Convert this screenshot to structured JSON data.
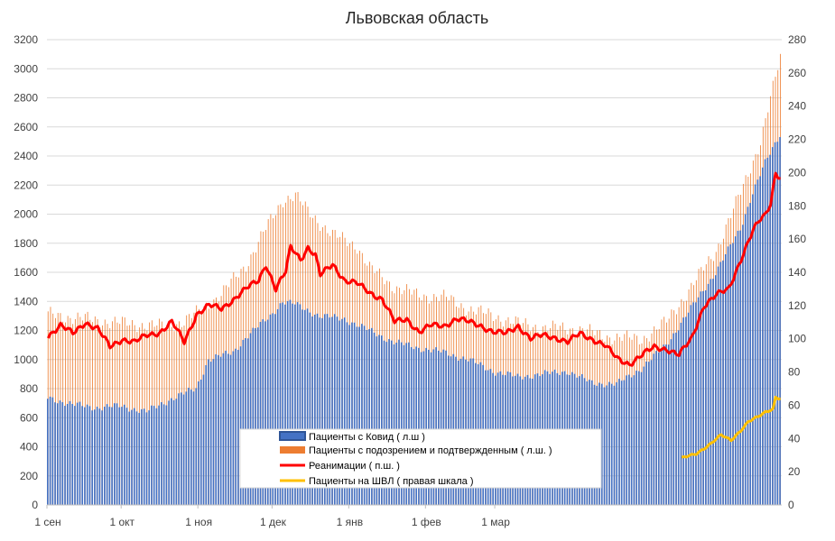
{
  "chart_data": {
    "type": "bar+line",
    "title": "Львовская область",
    "x_tick_labels": [
      "1 сен",
      "1 окт",
      "1 ноя",
      "1 дек",
      "1 янв",
      "1 фев",
      "1 мар"
    ],
    "y_left": {
      "min": 0,
      "max": 3200,
      "step": 200
    },
    "y_right": {
      "min": 0,
      "max": 280,
      "step": 20
    },
    "grid": true,
    "legend_position": "bottom-center",
    "series": [
      {
        "name": "Пациенты с Ковид ( л.ш )",
        "kind": "bar",
        "axis": "left",
        "color": "#4472C4",
        "anchors": [
          [
            0,
            740
          ],
          [
            10,
            690
          ],
          [
            20,
            670
          ],
          [
            30,
            680
          ],
          [
            40,
            640
          ],
          [
            50,
            730
          ],
          [
            60,
            800
          ],
          [
            65,
            1000
          ],
          [
            75,
            1050
          ],
          [
            80,
            1150
          ],
          [
            90,
            1300
          ],
          [
            95,
            1400
          ],
          [
            100,
            1380
          ],
          [
            110,
            1300
          ],
          [
            120,
            1280
          ],
          [
            130,
            1200
          ],
          [
            140,
            1120
          ],
          [
            150,
            1080
          ],
          [
            160,
            1050
          ],
          [
            170,
            1000
          ],
          [
            180,
            920
          ],
          [
            190,
            880
          ],
          [
            200,
            900
          ],
          [
            210,
            920
          ],
          [
            220,
            840
          ],
          [
            230,
            830
          ],
          [
            240,
            940
          ],
          [
            250,
            1100
          ],
          [
            260,
            1350
          ],
          [
            270,
            1600
          ],
          [
            280,
            1900
          ],
          [
            285,
            2150
          ],
          [
            290,
            2350
          ],
          [
            296,
            2550
          ]
        ]
      },
      {
        "name": "Пациенты с подозрением и подтвержденным ( л.ш. )",
        "kind": "bar",
        "axis": "left",
        "color": "#ED7D31",
        "anchors": [
          [
            0,
            1310
          ],
          [
            15,
            1280
          ],
          [
            30,
            1250
          ],
          [
            45,
            1230
          ],
          [
            55,
            1260
          ],
          [
            60,
            1320
          ],
          [
            70,
            1450
          ],
          [
            80,
            1650
          ],
          [
            88,
            1900
          ],
          [
            95,
            2100
          ],
          [
            100,
            2130
          ],
          [
            105,
            2020
          ],
          [
            115,
            1860
          ],
          [
            125,
            1780
          ],
          [
            130,
            1630
          ],
          [
            140,
            1500
          ],
          [
            150,
            1440
          ],
          [
            160,
            1430
          ],
          [
            170,
            1350
          ],
          [
            180,
            1300
          ],
          [
            190,
            1250
          ],
          [
            200,
            1220
          ],
          [
            215,
            1210
          ],
          [
            225,
            1160
          ],
          [
            240,
            1140
          ],
          [
            250,
            1260
          ],
          [
            260,
            1500
          ],
          [
            270,
            1750
          ],
          [
            280,
            2150
          ],
          [
            288,
            2500
          ],
          [
            296,
            3080
          ]
        ]
      },
      {
        "name": "Реанимации ( п.ш. )",
        "kind": "line",
        "axis": "right",
        "color": "#FF0000",
        "anchors": [
          [
            0,
            102
          ],
          [
            5,
            108
          ],
          [
            10,
            103
          ],
          [
            15,
            110
          ],
          [
            20,
            106
          ],
          [
            25,
            95
          ],
          [
            30,
            100
          ],
          [
            35,
            98
          ],
          [
            40,
            102
          ],
          [
            45,
            104
          ],
          [
            50,
            110
          ],
          [
            55,
            98
          ],
          [
            60,
            115
          ],
          [
            65,
            120
          ],
          [
            70,
            118
          ],
          [
            75,
            124
          ],
          [
            80,
            130
          ],
          [
            85,
            135
          ],
          [
            88,
            145
          ],
          [
            92,
            130
          ],
          [
            96,
            140
          ],
          [
            98,
            155
          ],
          [
            100,
            152
          ],
          [
            102,
            148
          ],
          [
            105,
            155
          ],
          [
            108,
            150
          ],
          [
            110,
            138
          ],
          [
            115,
            145
          ],
          [
            120,
            135
          ],
          [
            125,
            133
          ],
          [
            130,
            128
          ],
          [
            135,
            124
          ],
          [
            140,
            110
          ],
          [
            145,
            112
          ],
          [
            150,
            104
          ],
          [
            155,
            108
          ],
          [
            160,
            108
          ],
          [
            165,
            112
          ],
          [
            170,
            110
          ],
          [
            175,
            108
          ],
          [
            180,
            104
          ],
          [
            185,
            103
          ],
          [
            190,
            108
          ],
          [
            195,
            100
          ],
          [
            200,
            102
          ],
          [
            205,
            101
          ],
          [
            210,
            98
          ],
          [
            215,
            103
          ],
          [
            220,
            100
          ],
          [
            225,
            96
          ],
          [
            230,
            88
          ],
          [
            235,
            85
          ],
          [
            240,
            90
          ],
          [
            245,
            95
          ],
          [
            250,
            94
          ],
          [
            255,
            90
          ],
          [
            260,
            100
          ],
          [
            265,
            120
          ],
          [
            270,
            126
          ],
          [
            275,
            130
          ],
          [
            280,
            148
          ],
          [
            285,
            165
          ],
          [
            288,
            172
          ],
          [
            290,
            175
          ],
          [
            292,
            182
          ],
          [
            294,
            200
          ],
          [
            296,
            197
          ]
        ]
      },
      {
        "name": "Пациенты на ШВЛ ( правая шкала )",
        "kind": "line",
        "axis": "right",
        "color": "#FFC000",
        "anchors": [
          [
            256,
            28
          ],
          [
            262,
            31
          ],
          [
            268,
            37
          ],
          [
            272,
            42
          ],
          [
            276,
            39
          ],
          [
            280,
            45
          ],
          [
            283,
            50
          ],
          [
            287,
            53
          ],
          [
            290,
            56
          ],
          [
            293,
            58
          ],
          [
            294,
            65
          ],
          [
            296,
            64
          ]
        ]
      }
    ],
    "days": 297
  }
}
